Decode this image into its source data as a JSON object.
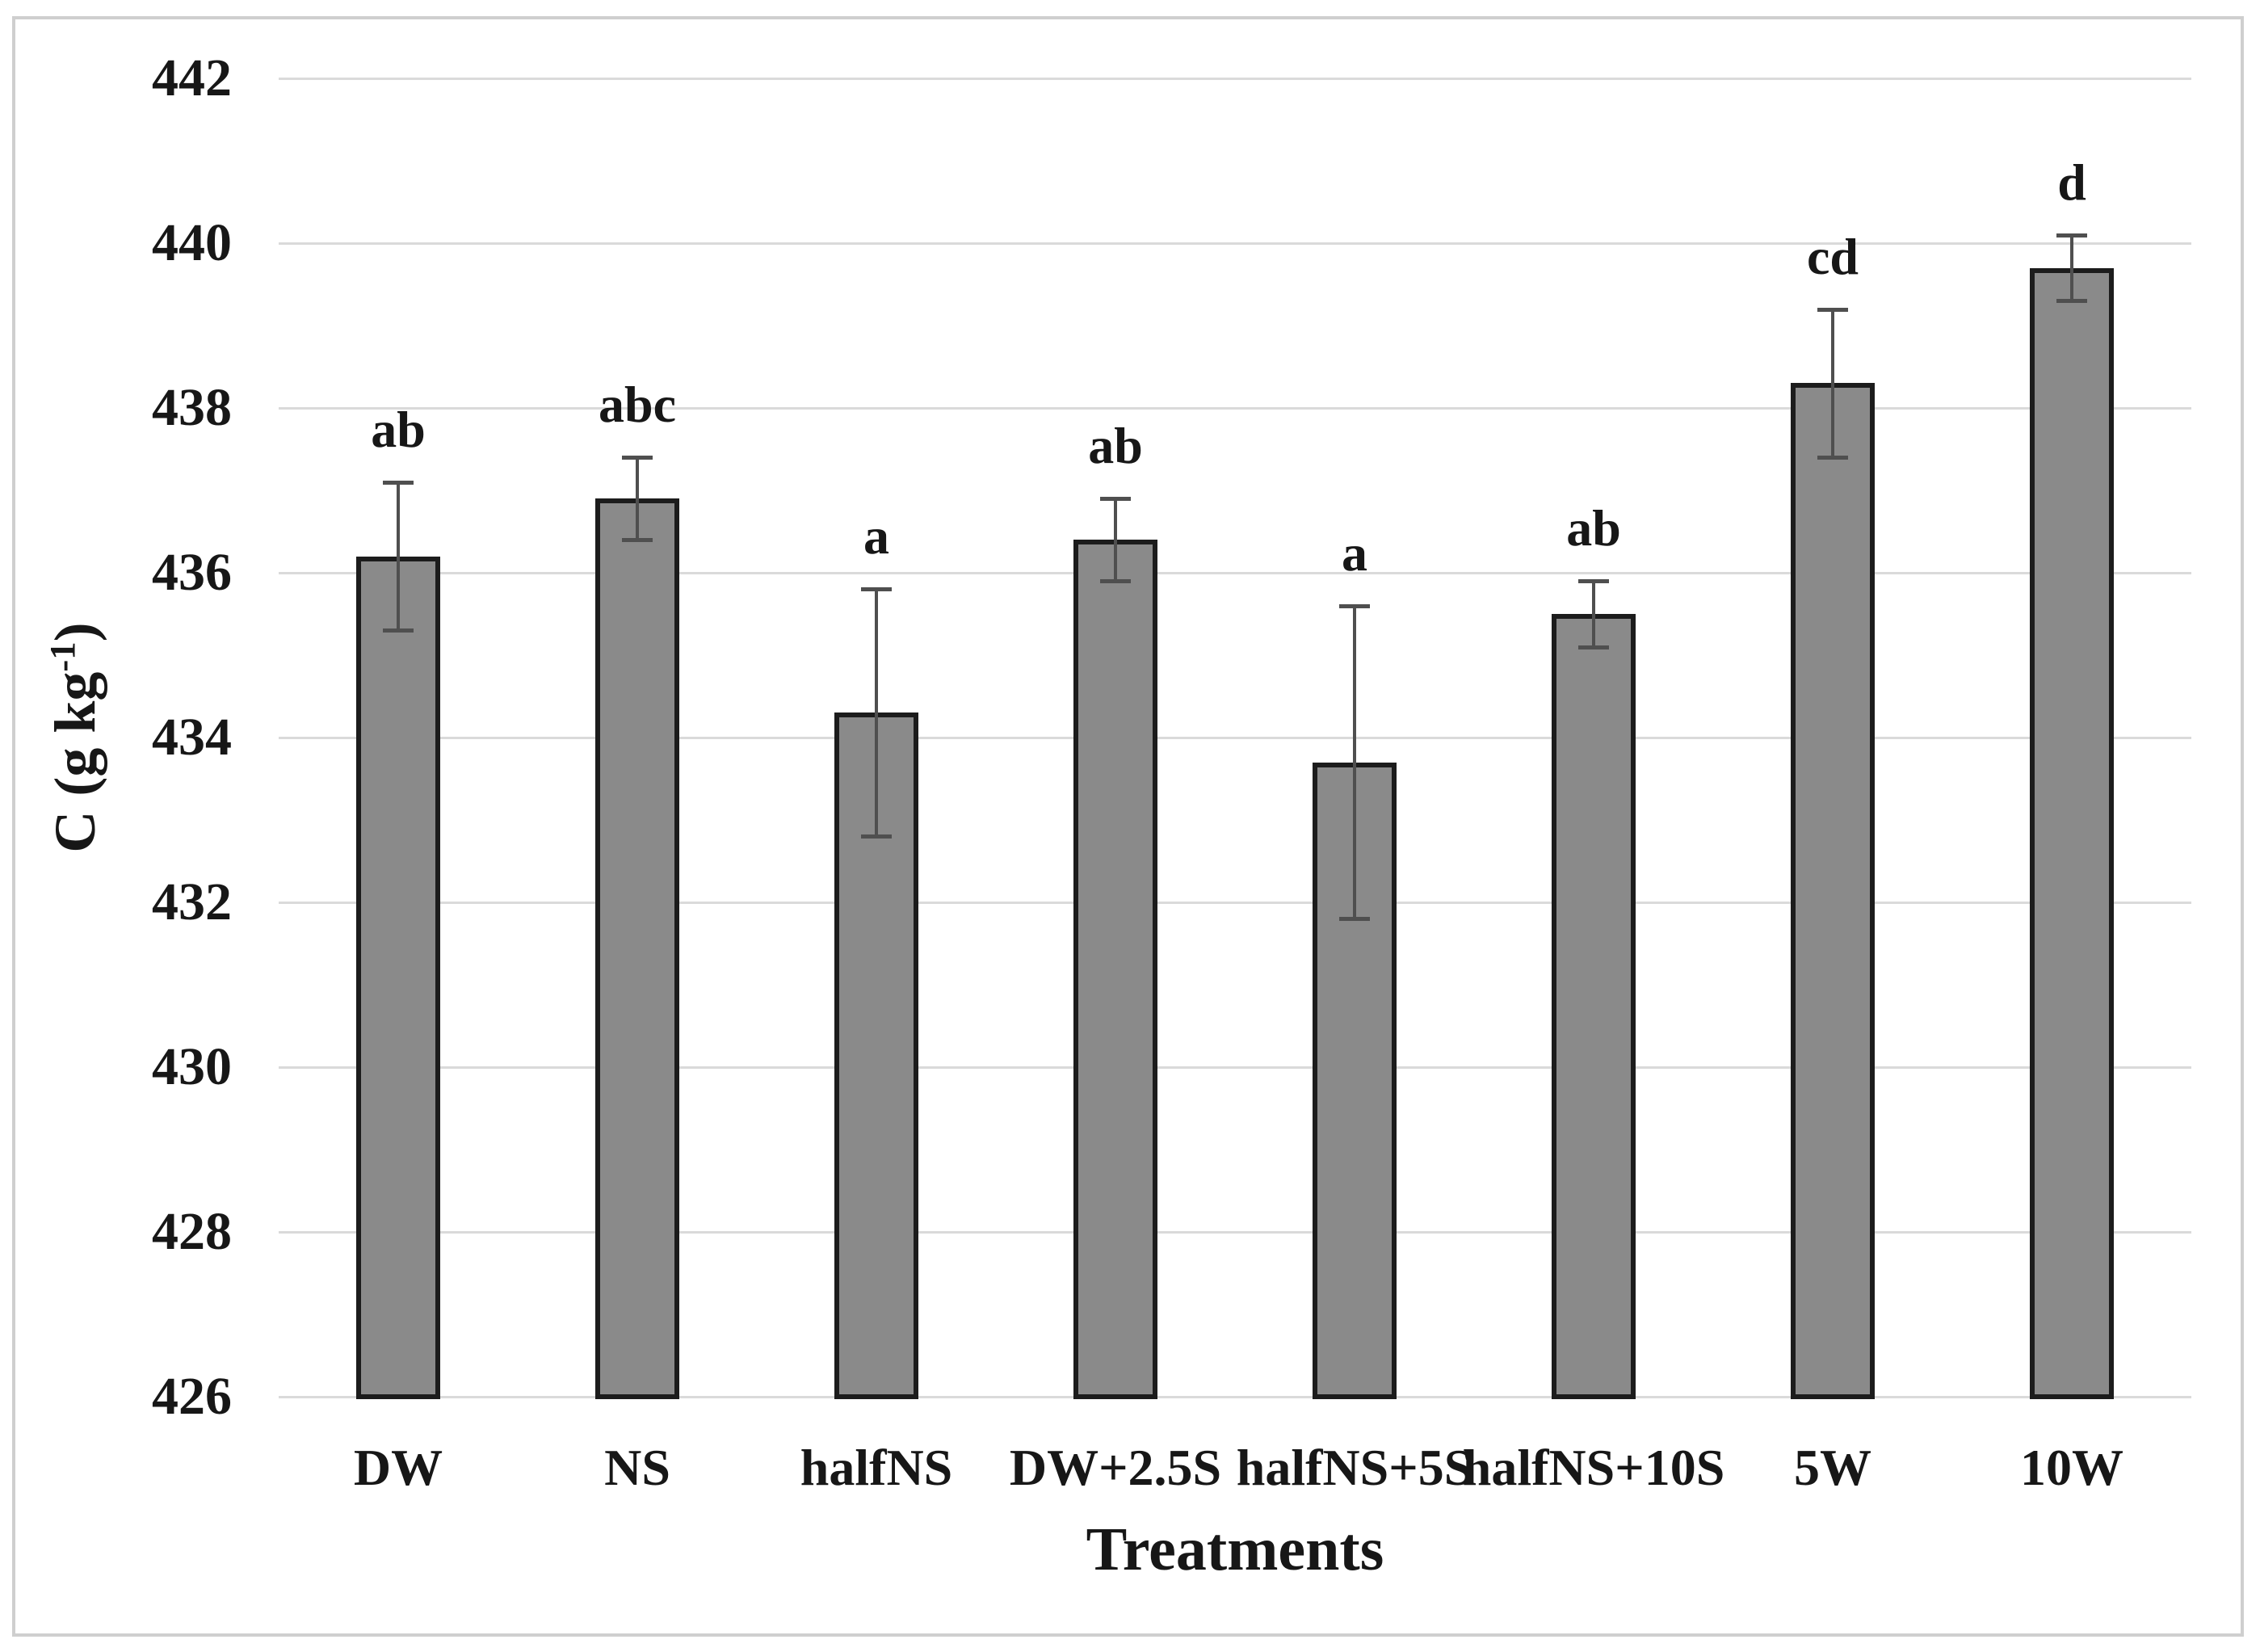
{
  "figure": {
    "y_axis": {
      "title_prefix": "C (g kg",
      "title_sup": "-1",
      "title_suffix": ")",
      "tick_labels": [
        "442",
        "440",
        "438",
        "436",
        "434",
        "432",
        "430",
        "428",
        "426"
      ]
    },
    "x_axis": {
      "title": "Treatments"
    }
  },
  "chart_data": {
    "type": "bar",
    "title": "",
    "xlabel": "Treatments",
    "ylabel": "C (g kg-1)",
    "ylim": [
      426,
      442
    ],
    "ytick_interval": 2,
    "grid": "horizontal",
    "legend": "none",
    "categories": [
      "DW",
      "NS",
      "halfNS",
      "DW+2.5S",
      "halfNS+5S",
      "halfNS+10S",
      "5W",
      "10W"
    ],
    "values": [
      436.2,
      436.9,
      434.3,
      436.4,
      433.7,
      435.5,
      438.3,
      439.7
    ],
    "error": [
      0.9,
      0.5,
      1.5,
      0.5,
      1.9,
      0.4,
      0.9,
      0.4
    ],
    "sig_letters": [
      "ab",
      "abc",
      "a",
      "ab",
      "a",
      "ab",
      "cd",
      "d"
    ],
    "colors": {
      "bar_fill": "#8a8a8a",
      "bar_border": "#1c1c1c",
      "error_bar": "#4f4f4f",
      "gridline": "#dadada",
      "frame_border": "#cfcfcf",
      "text": "#171717"
    }
  }
}
